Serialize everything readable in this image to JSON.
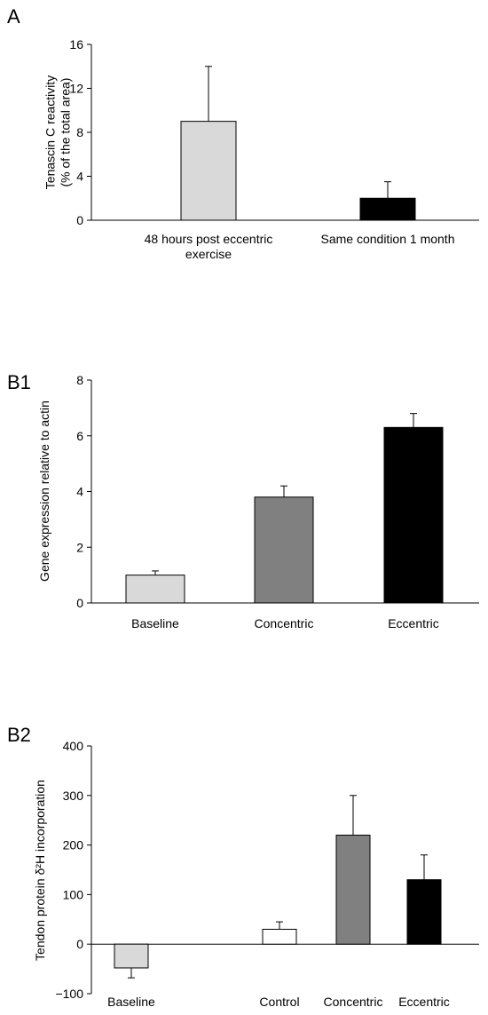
{
  "chart_data": [
    {
      "panel": "A",
      "type": "bar",
      "ylabel_lines": [
        "Tenascin C reactivity",
        "(% of the total area)"
      ],
      "ylim": [
        0,
        16
      ],
      "yticks": [
        0,
        4,
        8,
        12,
        16
      ],
      "categories": [
        [
          "48 hours post eccentric",
          "exercise"
        ],
        [
          "Same condition 1 month"
        ]
      ],
      "values": [
        9,
        2
      ],
      "errors": [
        5,
        1.5
      ],
      "colors": [
        "#d9d9d9",
        "#000000"
      ]
    },
    {
      "panel": "B1",
      "type": "bar",
      "ylabel_lines": [
        "Gene expression relative to actin"
      ],
      "ylim": [
        0,
        8
      ],
      "yticks": [
        0,
        2,
        4,
        6,
        8
      ],
      "categories": [
        [
          "Baseline"
        ],
        [
          "Concentric"
        ],
        [
          "Eccentric"
        ]
      ],
      "values": [
        1.0,
        3.8,
        6.3
      ],
      "errors": [
        0.15,
        0.4,
        0.5
      ],
      "colors": [
        "#d9d9d9",
        "#808080",
        "#000000"
      ]
    },
    {
      "panel": "B2",
      "type": "bar",
      "ylabel_lines": [
        "Tendon protein δ²H incorporation"
      ],
      "ylim": [
        -100,
        400
      ],
      "yticks": [
        -100,
        0,
        100,
        200,
        300,
        400
      ],
      "categories": [
        [
          "Baseline"
        ],
        [
          "Control"
        ],
        [
          "Concentric"
        ],
        [
          "Eccentric"
        ]
      ],
      "values": [
        -48,
        30,
        220,
        130
      ],
      "errors": [
        20,
        15,
        80,
        50
      ],
      "colors": [
        "#d9d9d9",
        "#ffffff",
        "#808080",
        "#000000"
      ]
    }
  ]
}
